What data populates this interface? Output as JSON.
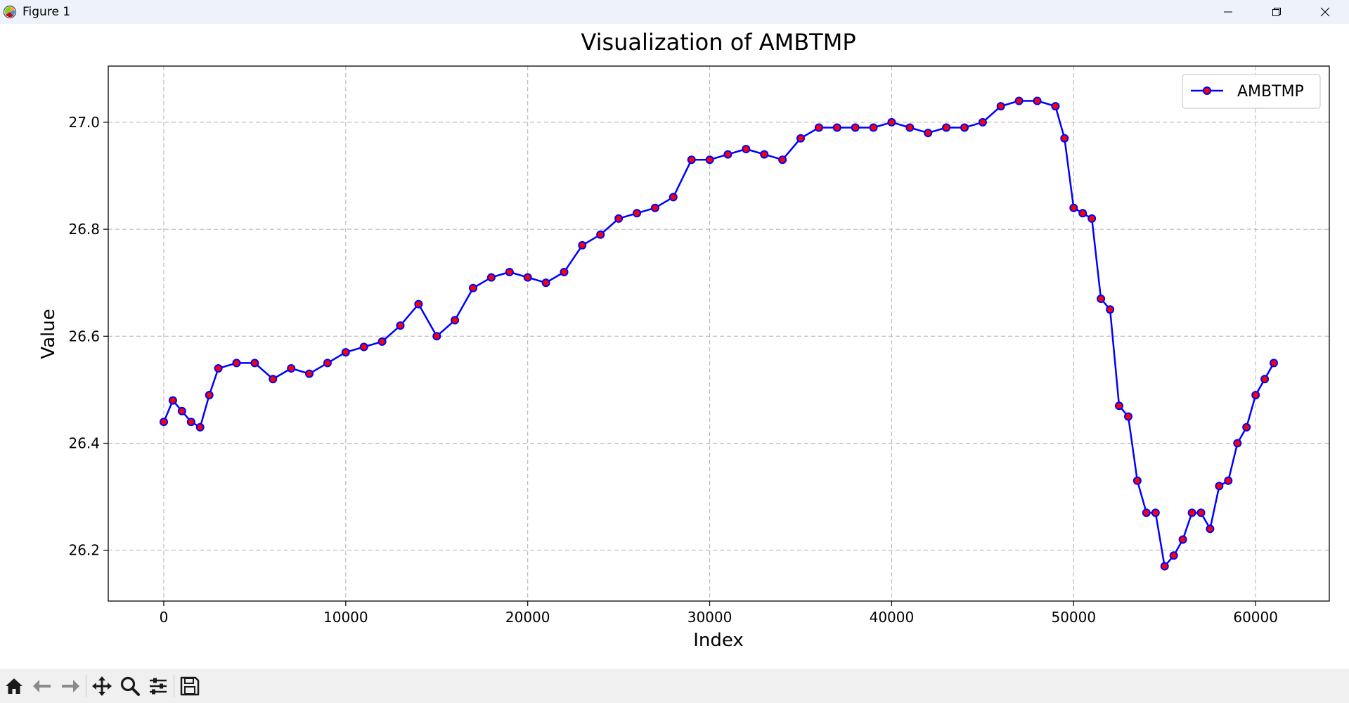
{
  "window": {
    "title": "Figure 1",
    "icons": {
      "app": "matplotlib-icon",
      "minimize": "minimize-icon",
      "maximize": "restore-icon",
      "close": "close-icon"
    }
  },
  "toolbar": {
    "buttons": [
      "home-icon",
      "back-arrow-icon",
      "forward-arrow-icon",
      "pan-move-icon",
      "zoom-magnifier-icon",
      "configure-subplots-icon",
      "save-floppy-icon"
    ]
  },
  "colors": {
    "line": "#0000ff",
    "marker_fill": "#ff0000",
    "marker_edge": "#0000ff",
    "grid": "#b0b0b0"
  },
  "chart_data": {
    "type": "line",
    "title": "Visualization of AMBTMP",
    "xlabel": "Index",
    "ylabel": "Value",
    "xlim": [
      -3050,
      64050
    ],
    "ylim": [
      26.105,
      27.105
    ],
    "xticks": [
      0,
      10000,
      20000,
      30000,
      40000,
      50000,
      60000
    ],
    "xtick_labels": [
      "0",
      "10000",
      "20000",
      "30000",
      "40000",
      "50000",
      "60000"
    ],
    "yticks": [
      26.2,
      26.4,
      26.6,
      26.8,
      27.0
    ],
    "ytick_labels": [
      "26.2",
      "26.4",
      "26.6",
      "26.8",
      "27.0"
    ],
    "grid": true,
    "legend_position": "top-right",
    "marker": "circle",
    "series": [
      {
        "name": "AMBTMP",
        "x": [
          0,
          500,
          1000,
          1500,
          2000,
          2500,
          3000,
          4000,
          5000,
          6000,
          7000,
          8000,
          9000,
          10000,
          11000,
          12000,
          13000,
          14000,
          15000,
          16000,
          17000,
          18000,
          19000,
          20000,
          21000,
          22000,
          23000,
          24000,
          25000,
          26000,
          27000,
          28000,
          29000,
          30000,
          31000,
          32000,
          33000,
          34000,
          35000,
          36000,
          37000,
          38000,
          39000,
          40000,
          41000,
          42000,
          43000,
          44000,
          45000,
          46000,
          47000,
          48000,
          49000,
          49500,
          50000,
          50500,
          51000,
          51500,
          52000,
          52500,
          53000,
          53500,
          54000,
          54500,
          55000,
          55500,
          56000,
          56500,
          57000,
          57500,
          58000,
          58500,
          59000,
          59500,
          60000,
          60500,
          61000
        ],
        "y": [
          26.44,
          26.48,
          26.46,
          26.44,
          26.43,
          26.49,
          26.54,
          26.55,
          26.55,
          26.52,
          26.54,
          26.53,
          26.55,
          26.57,
          26.58,
          26.59,
          26.62,
          26.66,
          26.6,
          26.63,
          26.69,
          26.71,
          26.72,
          26.71,
          26.7,
          26.72,
          26.77,
          26.79,
          26.82,
          26.83,
          26.84,
          26.86,
          26.93,
          26.93,
          26.94,
          26.95,
          26.94,
          26.93,
          26.97,
          26.99,
          26.99,
          26.99,
          26.99,
          27.0,
          26.99,
          26.98,
          26.99,
          26.99,
          27.0,
          27.03,
          27.04,
          27.04,
          27.03,
          26.97,
          26.84,
          26.83,
          26.82,
          26.67,
          26.65,
          26.47,
          26.45,
          26.33,
          26.27,
          26.27,
          26.17,
          26.19,
          26.22,
          26.27,
          26.27,
          26.24,
          26.32,
          26.33,
          26.4,
          26.43,
          26.49,
          26.52,
          26.55
        ]
      }
    ]
  }
}
